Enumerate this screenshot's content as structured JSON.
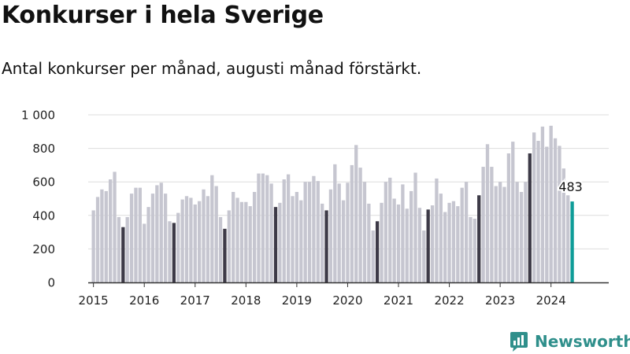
{
  "title": "Konkurser i hela Sverige",
  "subtitle": "Antal konkurser per månad, augusti månad förstärkt.",
  "brand": "Newsworthy",
  "brand_icon": "newsworthy-chart-icon",
  "colors": {
    "regular": "#c6c6d0",
    "highlight": "#3d3a47",
    "latest": "#0e9c98",
    "grid": "#dddddd",
    "axis": "#333333",
    "brand": "#2f8f8b"
  },
  "chart_data": {
    "type": "bar",
    "title": "Konkurser i hela Sverige",
    "subtitle": "Antal konkurser per månad, augusti månad förstärkt.",
    "xlabel": "",
    "ylabel": "",
    "ylim": [
      0,
      1000
    ],
    "yticks": [
      0,
      200,
      400,
      600,
      800,
      1000
    ],
    "ytick_labels": [
      "0",
      "200",
      "400",
      "600",
      "800",
      "1 000"
    ],
    "grid": true,
    "highlight_month": 8,
    "annotation": "483",
    "years": [
      "2015",
      "2016",
      "2017",
      "2018",
      "2019",
      "2020",
      "2021",
      "2022",
      "2023",
      "2024"
    ],
    "values": [
      [
        430,
        510,
        555,
        545,
        615,
        660,
        390,
        330,
        390,
        530,
        565,
        565
      ],
      [
        350,
        450,
        530,
        580,
        595,
        530,
        365,
        355,
        415,
        495,
        515,
        505
      ],
      [
        465,
        485,
        555,
        515,
        640,
        575,
        390,
        320,
        430,
        540,
        505,
        480
      ],
      [
        480,
        455,
        540,
        650,
        650,
        640,
        590,
        450,
        475,
        615,
        645,
        515
      ],
      [
        540,
        490,
        600,
        600,
        635,
        605,
        470,
        430,
        555,
        705,
        590,
        490
      ],
      [
        595,
        700,
        820,
        685,
        600,
        470,
        310,
        365,
        475,
        600,
        625,
        500
      ],
      [
        465,
        585,
        440,
        545,
        655,
        445,
        310,
        435,
        460,
        620,
        530,
        420
      ],
      [
        475,
        485,
        455,
        565,
        600,
        390,
        380,
        520,
        690,
        825,
        690,
        575
      ],
      [
        600,
        570,
        770,
        840,
        600,
        540,
        600,
        770,
        895,
        845,
        930,
        810
      ],
      [
        935,
        860,
        815,
        680,
        520,
        483
      ]
    ]
  }
}
